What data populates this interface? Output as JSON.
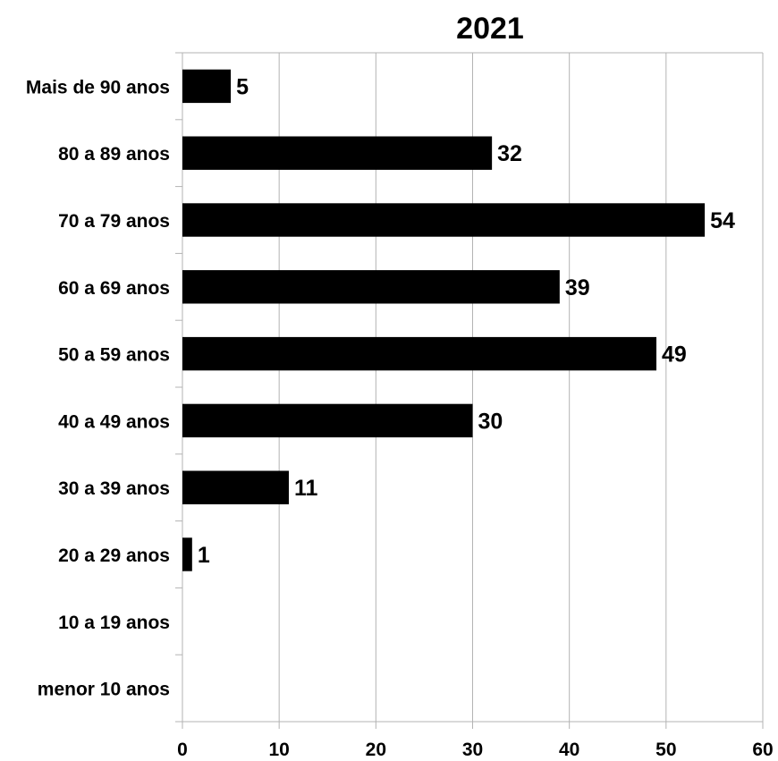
{
  "chart_data": {
    "type": "bar",
    "orientation": "horizontal",
    "title": "2021",
    "xlabel": "",
    "ylabel": "",
    "categories": [
      "Mais de 90 anos",
      "80 a 89 anos",
      "70 a 79 anos",
      "60 a 69 anos",
      "50 a 59 anos",
      "40 a 49 anos",
      "30 a 39 anos",
      "20 a 29 anos",
      "10 a 19 anos",
      "menor 10 anos"
    ],
    "values": [
      5,
      32,
      54,
      39,
      49,
      30,
      11,
      1,
      null,
      null
    ],
    "data_labels": [
      "5",
      "32",
      "54",
      "39",
      "49",
      "30",
      "11",
      "1",
      "",
      ""
    ],
    "xlim": [
      0,
      60
    ],
    "x_ticks": [
      0,
      10,
      20,
      30,
      40,
      50,
      60
    ],
    "x_tick_labels": [
      "0",
      "10",
      "20",
      "30",
      "40",
      "50",
      "60"
    ],
    "grid": "vertical",
    "legend": "none",
    "bar_color": "#000000",
    "grid_color": "#b3b3b3"
  }
}
